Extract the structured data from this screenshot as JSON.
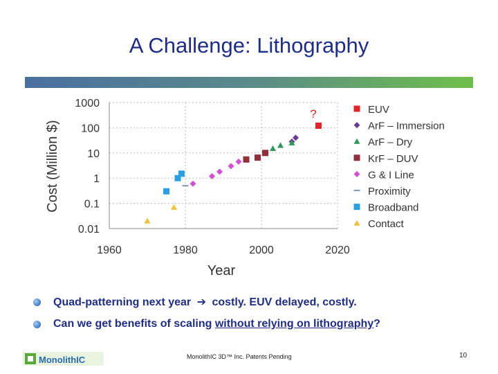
{
  "slide": {
    "title": "A Challenge: Lithography",
    "bullets": [
      {
        "before": "Quad-patterning next year",
        "arrow": "➔",
        "after": "costly. EUV delayed, costly."
      },
      {
        "before": "Can we get benefits of scaling ",
        "underlined": "without relying on lithography",
        "after": "?"
      }
    ],
    "footer": "MonolithIC 3D™ Inc. Patents Pending",
    "page_number": "10",
    "logo_text": "MonolithIC"
  },
  "chart_data": {
    "type": "scatter",
    "title": "",
    "xlabel": "Year",
    "ylabel": "Cost (Million $)",
    "xlim": [
      1960,
      2020
    ],
    "ylim": [
      0.01,
      1000
    ],
    "yscale": "log",
    "xticks": [
      "1960",
      "1980",
      "2000",
      "2020"
    ],
    "yticks": [
      "0.01",
      "0.1",
      "1",
      "10",
      "100",
      "1000"
    ],
    "annotation": "?",
    "series": [
      {
        "name": "EUV",
        "marker": "square",
        "color": "#e0262b",
        "points": [
          [
            2015,
            120
          ]
        ]
      },
      {
        "name": "ArF – Immersion",
        "marker": "diamond",
        "color": "#6b3a96",
        "points": [
          [
            2008,
            28
          ],
          [
            2009,
            40
          ]
        ]
      },
      {
        "name": "ArF – Dry",
        "marker": "triangle",
        "color": "#2a9a5a",
        "points": [
          [
            2003,
            15
          ],
          [
            2005,
            20
          ],
          [
            2008,
            25
          ]
        ]
      },
      {
        "name": "KrF – DUV",
        "marker": "square",
        "color": "#8e2f3a",
        "points": [
          [
            1996,
            5.5
          ],
          [
            1999,
            6.5
          ],
          [
            2001,
            10
          ]
        ]
      },
      {
        "name": "G & I Line",
        "marker": "diamond",
        "color": "#d24fd6",
        "points": [
          [
            1982,
            0.6
          ],
          [
            1987,
            1.2
          ],
          [
            1989,
            1.8
          ],
          [
            1992,
            3.0
          ],
          [
            1994,
            4.5
          ]
        ]
      },
      {
        "name": "Proximity",
        "marker": "dash",
        "color": "#7a9ab8",
        "points": [
          [
            1980,
            0.5
          ]
        ]
      },
      {
        "name": "Broadband",
        "marker": "square",
        "color": "#2b9fe0",
        "points": [
          [
            1975,
            0.3
          ],
          [
            1978,
            1.0
          ],
          [
            1979,
            1.5
          ]
        ]
      },
      {
        "name": "Contact",
        "marker": "triangle",
        "color": "#f2c037",
        "points": [
          [
            1970,
            0.02
          ],
          [
            1977,
            0.07
          ]
        ]
      }
    ]
  }
}
